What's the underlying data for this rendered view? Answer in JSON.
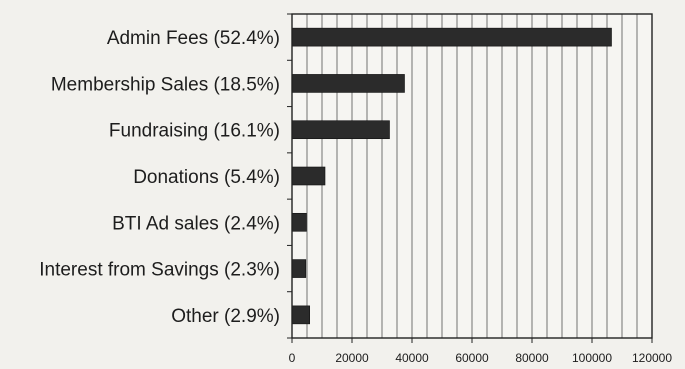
{
  "chart_data": {
    "type": "bar",
    "orientation": "horizontal",
    "categories": [
      "Admin Fees (52.4%)",
      "Membership Sales (18.5%)",
      "Fundraising (16.1%)",
      "Donations (5.4%)",
      "BTI Ad sales (2.4%)",
      "Interest from Savings (2.3%)",
      "Other (2.9%)"
    ],
    "values": [
      106500,
      37500,
      32500,
      11000,
      4800,
      4600,
      5900
    ],
    "x_ticks": [
      "0",
      "20000",
      "40000",
      "60000",
      "80000",
      "100000",
      "120000"
    ],
    "xlim": [
      0,
      120000
    ],
    "grid": "vertical",
    "bar_color": "#2b2b2b"
  }
}
